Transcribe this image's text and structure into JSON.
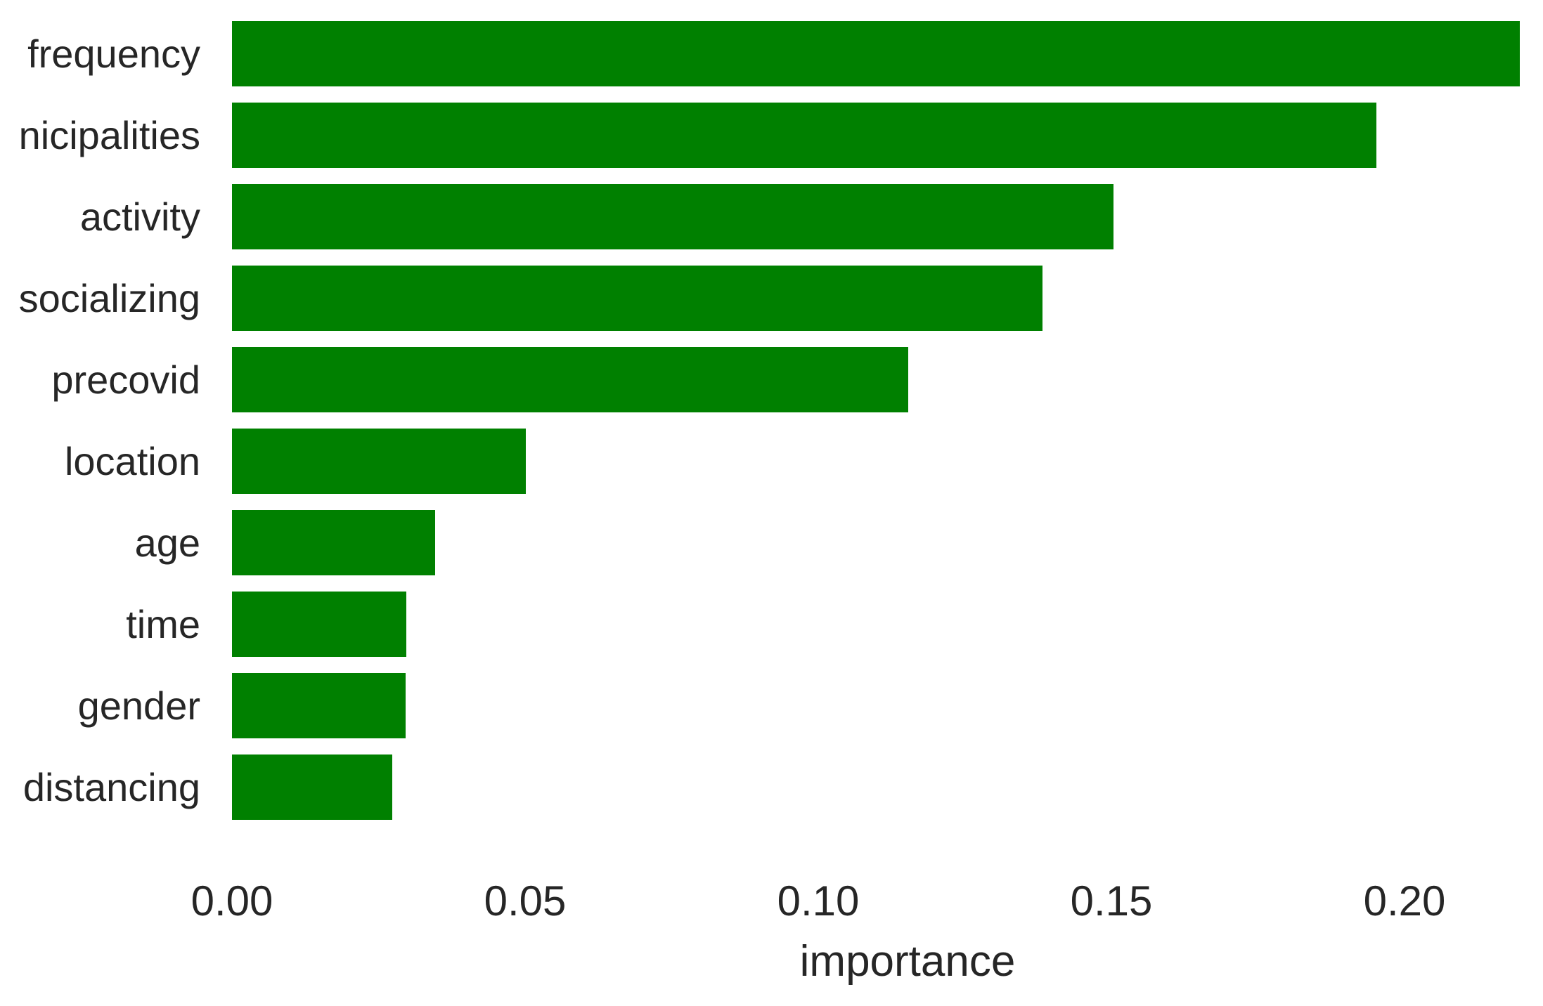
{
  "figure": {
    "background": "#ffffff"
  },
  "chart_data": {
    "type": "bar",
    "orientation": "horizontal",
    "title": "",
    "xlabel": "importance",
    "ylabel": "",
    "categories": [
      "frequency",
      "nicipalities",
      "activity",
      "socializing",
      "precovid",
      "location",
      "age",
      "time",
      "gender",
      "distancing"
    ],
    "values": [
      0.2197,
      0.1952,
      0.1504,
      0.1383,
      0.1153,
      0.0501,
      0.0347,
      0.0297,
      0.0296,
      0.0273
    ],
    "x_ticks": [
      {
        "label": "0.00",
        "value": 0.0
      },
      {
        "label": "0.05",
        "value": 0.05
      },
      {
        "label": "0.10",
        "value": 0.1
      },
      {
        "label": "0.15",
        "value": 0.15
      },
      {
        "label": "0.20",
        "value": 0.2
      }
    ],
    "xlim": [
      0,
      0.22
    ],
    "grid": false,
    "legend": false,
    "bar_color": "#008000",
    "text_color": "#262626"
  }
}
